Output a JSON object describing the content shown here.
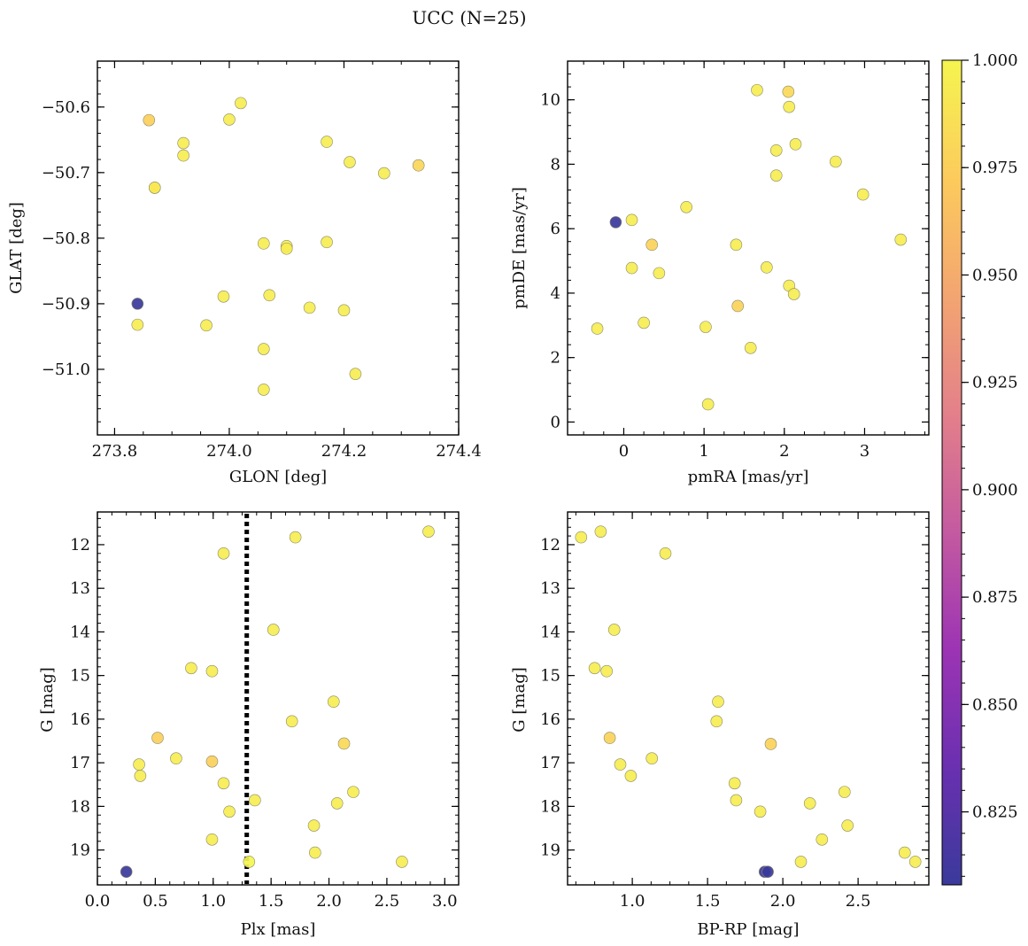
{
  "figure_title": "UCC (N=25)",
  "colorbar": {
    "range": [
      0.808,
      1.0
    ],
    "ticks": [
      0.825,
      0.85,
      0.875,
      0.9,
      0.925,
      0.95,
      0.975,
      1.0
    ],
    "tick_labels": [
      "0.825",
      "0.850",
      "0.875",
      "0.900",
      "0.925",
      "0.950",
      "0.975",
      "1.000"
    ],
    "colormap": [
      "#3a3a9b",
      "#6a30b0",
      "#9c34b4",
      "#c45aa0",
      "#e3808a",
      "#f3a571",
      "#fccb5c",
      "#f5f550"
    ]
  },
  "chart_data": [
    {
      "type": "scatter",
      "name": "glon-glat",
      "xlabel": "GLON [deg]",
      "ylabel": "GLAT [deg]",
      "xlim": [
        273.77,
        274.4
      ],
      "ylim": [
        -51.1,
        -50.53
      ],
      "y_inverted": false,
      "xticks": [
        273.8,
        274.0,
        274.2,
        274.4
      ],
      "xtick_labels": [
        "273.8",
        "274.0",
        "274.2",
        "274.4"
      ],
      "yticks": [
        -50.6,
        -50.7,
        -50.8,
        -50.9,
        -51.0
      ],
      "ytick_labels": [
        "−50.6",
        "−50.7",
        "−50.8",
        "−50.9",
        "−51.0"
      ],
      "x": [
        273.84,
        273.86,
        273.87,
        273.87,
        273.92,
        273.92,
        274.0,
        274.02,
        274.17,
        274.21,
        274.27,
        274.33,
        274.06,
        274.1,
        274.1,
        274.17,
        274.07,
        273.99,
        274.14,
        274.2,
        273.96,
        273.84,
        274.06,
        274.06,
        274.22
      ],
      "y": [
        -50.9,
        -50.62,
        -50.723,
        -50.723,
        -50.655,
        -50.674,
        -50.619,
        -50.594,
        -50.653,
        -50.684,
        -50.701,
        -50.689,
        -50.808,
        -50.812,
        -50.816,
        -50.806,
        -50.887,
        -50.889,
        -50.906,
        -50.91,
        -50.933,
        -50.932,
        -50.969,
        -51.031,
        -51.007
      ],
      "c": [
        0.808,
        0.975,
        1.0,
        0.99,
        0.995,
        0.995,
        0.995,
        0.995,
        0.995,
        0.995,
        0.995,
        0.98,
        0.995,
        0.995,
        0.995,
        0.995,
        0.995,
        0.995,
        0.995,
        0.995,
        0.995,
        0.995,
        0.995,
        0.995,
        0.995
      ]
    },
    {
      "type": "scatter",
      "name": "pmra-pmde",
      "xlabel": "pmRA [mas/yr]",
      "ylabel": "pmDE [mas/yr]",
      "xlim": [
        -0.7,
        3.8
      ],
      "ylim": [
        -0.4,
        11.2
      ],
      "y_inverted": false,
      "xticks": [
        0,
        1,
        2,
        3
      ],
      "xtick_labels": [
        "0",
        "1",
        "2",
        "3"
      ],
      "yticks": [
        0,
        2,
        4,
        6,
        8,
        10
      ],
      "ytick_labels": [
        "0",
        "2",
        "4",
        "6",
        "8",
        "10"
      ],
      "x": [
        -0.1,
        0.35,
        1.42,
        2.05,
        -0.33,
        0.25,
        0.1,
        0.1,
        0.44,
        0.78,
        1.02,
        1.05,
        1.4,
        1.58,
        1.66,
        1.78,
        1.9,
        1.9,
        2.06,
        2.06,
        2.12,
        2.14,
        2.64,
        2.98,
        3.45
      ],
      "y": [
        6.2,
        5.5,
        3.6,
        10.25,
        2.9,
        3.08,
        6.27,
        4.78,
        4.62,
        6.67,
        2.95,
        0.55,
        5.5,
        2.3,
        10.3,
        4.8,
        8.43,
        7.65,
        9.78,
        4.23,
        3.97,
        8.62,
        8.08,
        7.06,
        5.66
      ],
      "c": [
        0.808,
        0.978,
        0.978,
        0.982,
        0.995,
        0.995,
        0.995,
        0.995,
        0.995,
        0.995,
        0.995,
        0.995,
        0.995,
        0.995,
        0.995,
        0.995,
        0.995,
        0.995,
        0.995,
        0.995,
        0.995,
        0.995,
        0.995,
        0.995,
        0.995
      ]
    },
    {
      "type": "scatter",
      "name": "plx-g",
      "xlabel": "Plx [mas]",
      "ylabel": "G [mag]",
      "xlim": [
        0.0,
        3.12
      ],
      "ylim": [
        19.8,
        11.25
      ],
      "y_inverted": true,
      "vline": 1.29,
      "xticks": [
        0.0,
        0.5,
        1.0,
        1.5,
        2.0,
        2.5,
        3.0
      ],
      "xtick_labels": [
        "0.0",
        "0.5",
        "1.0",
        "1.5",
        "2.0",
        "2.5",
        "3.0"
      ],
      "yticks": [
        12,
        13,
        14,
        15,
        16,
        17,
        18,
        19
      ],
      "ytick_labels": [
        "12",
        "13",
        "14",
        "15",
        "16",
        "17",
        "18",
        "19"
      ],
      "x": [
        0.25,
        0.52,
        0.99,
        2.13,
        0.36,
        0.37,
        0.68,
        0.81,
        0.99,
        0.99,
        1.09,
        1.09,
        1.14,
        1.31,
        1.36,
        1.52,
        1.68,
        1.71,
        1.87,
        1.88,
        2.04,
        2.07,
        2.21,
        2.63,
        2.86
      ],
      "y": [
        19.5,
        16.43,
        16.97,
        16.56,
        17.04,
        17.3,
        16.9,
        14.83,
        14.9,
        18.76,
        12.2,
        17.47,
        18.12,
        19.27,
        17.86,
        13.95,
        16.05,
        11.83,
        18.44,
        19.06,
        15.6,
        17.93,
        17.67,
        19.27,
        11.7
      ],
      "c": [
        0.808,
        0.975,
        0.975,
        0.982,
        0.995,
        0.995,
        0.995,
        0.995,
        0.995,
        0.995,
        0.995,
        0.995,
        0.995,
        1.0,
        0.995,
        0.995,
        0.995,
        0.995,
        0.995,
        0.995,
        0.995,
        0.995,
        0.995,
        0.995,
        0.995
      ]
    },
    {
      "type": "scatter",
      "name": "bprp-g",
      "xlabel": "BP-RP [mag]",
      "ylabel": "G [mag]",
      "xlim": [
        0.57,
        2.97
      ],
      "ylim": [
        19.8,
        11.25
      ],
      "y_inverted": true,
      "xticks": [
        1.0,
        1.5,
        2.0,
        2.5
      ],
      "xtick_labels": [
        "1.0",
        "1.5",
        "2.0",
        "2.5"
      ],
      "yticks": [
        12,
        13,
        14,
        15,
        16,
        17,
        18,
        19
      ],
      "ytick_labels": [
        "12",
        "13",
        "14",
        "15",
        "16",
        "17",
        "18",
        "19"
      ],
      "x": [
        1.88,
        0.85,
        1.92,
        0.66,
        0.79,
        1.22,
        0.88,
        0.75,
        0.83,
        0.92,
        0.99,
        1.13,
        1.57,
        1.56,
        1.68,
        1.69,
        1.85,
        2.12,
        2.18,
        2.26,
        2.41,
        2.43,
        2.81,
        2.88,
        1.9
      ],
      "y": [
        19.5,
        16.43,
        16.57,
        11.83,
        11.7,
        12.2,
        13.95,
        14.83,
        14.9,
        17.04,
        17.3,
        16.9,
        15.6,
        16.05,
        17.47,
        17.86,
        18.12,
        19.27,
        17.93,
        18.76,
        17.67,
        18.44,
        19.06,
        19.27,
        19.5
      ],
      "c": [
        0.808,
        0.978,
        0.978,
        0.995,
        0.995,
        0.995,
        0.995,
        0.995,
        0.995,
        0.995,
        0.995,
        0.995,
        0.995,
        0.995,
        0.995,
        0.995,
        0.995,
        0.995,
        0.995,
        0.995,
        0.995,
        0.995,
        0.995,
        0.995,
        0.808
      ]
    }
  ]
}
